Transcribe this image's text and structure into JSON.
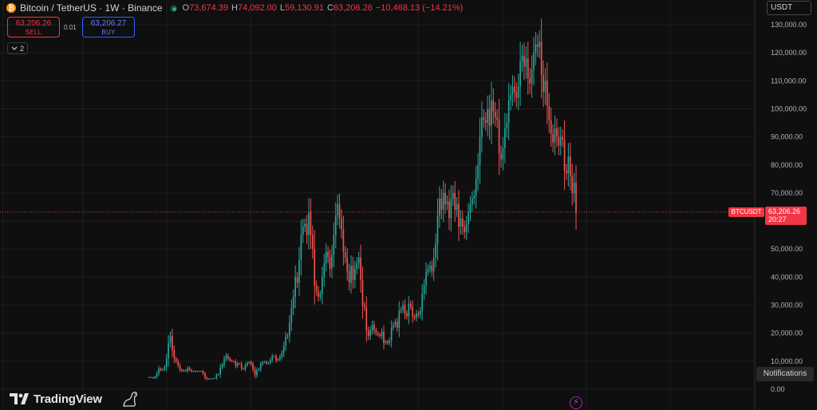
{
  "header": {
    "coin_glyph": "₿",
    "title": "Bitcoin / TetherUS · 1W · Binance",
    "ohlc": {
      "open_key": "O",
      "open": "73,674.39",
      "high_key": "H",
      "high": "74,092.00",
      "low_key": "L",
      "low": "59,130.91",
      "close_key": "C",
      "close": "63,206.26",
      "change": "−10,468.13 (−14.21%)"
    }
  },
  "trade": {
    "sell_price": "63,206.26",
    "sell_label": "SELL",
    "spread": "0.01",
    "buy_price": "63,206.27",
    "buy_label": "BUY"
  },
  "indicators": {
    "count": "2",
    "icon": "chevron-down-icon"
  },
  "currency": {
    "selected": "USDT"
  },
  "price_scale": {
    "last_price": "63,206.26",
    "countdown": "20:27",
    "symbol_tag": "BTCUSDT"
  },
  "notifications_label": "Notifications",
  "branding": {
    "name": "TradingView"
  },
  "colors": {
    "up": "#26a69a",
    "down": "#ef5350",
    "background": "#0f0f0f",
    "grid": "#1e1e1e",
    "last_price": "#f23645",
    "sell": "#f23645",
    "buy": "#2962ff"
  },
  "chart_data": {
    "type": "candlestick",
    "symbol": "BTCUSDT",
    "interval": "1W",
    "exchange": "Binance",
    "ylim": [
      0,
      130000
    ],
    "y_ticks": [
      0,
      10000,
      20000,
      30000,
      40000,
      50000,
      60000,
      70000,
      80000,
      90000,
      100000,
      110000,
      120000,
      130000
    ],
    "y_tick_labels": [
      "0.00",
      "10,000.00",
      "20,000.00",
      "30,000.00",
      "40,000.00",
      "50,000.00",
      "60,000.00",
      "70,000.00",
      "80,000.00",
      "90,000.00",
      "100,000.00",
      "110,000.00",
      "120,000.00",
      "130,000.00"
    ],
    "grid": true,
    "last_price": 63206.26,
    "close_series_approx": [
      4300,
      4200,
      4000,
      4500,
      5700,
      7400,
      6800,
      7100,
      8000,
      11000,
      16500,
      19000,
      14000,
      11000,
      10000,
      8500,
      7000,
      6500,
      6800,
      6500,
      7600,
      6900,
      6400,
      6500,
      6300,
      6400,
      6500,
      6400,
      5600,
      4200,
      3600,
      3800,
      3700,
      3900,
      4000,
      5100,
      5400,
      7800,
      8800,
      10800,
      12000,
      11000,
      10300,
      10000,
      9800,
      8300,
      9200,
      9100,
      7500,
      7200,
      8600,
      9400,
      9700,
      8900,
      7100,
      5000,
      6800,
      7200,
      8900,
      9600,
      9800,
      9200,
      9500,
      10500,
      11800,
      11700,
      10300,
      10700,
      11600,
      13000,
      15500,
      18600,
      19200,
      23800,
      29000,
      33000,
      40000,
      38000,
      46000,
      55000,
      58000,
      59000,
      55000,
      63000,
      55000,
      50000,
      37000,
      35000,
      33000,
      34000,
      40000,
      45000,
      49000,
      47000,
      43000,
      48000,
      55000,
      62000,
      66000,
      61000,
      57000,
      49000,
      47000,
      42000,
      38000,
      44000,
      39000,
      43000,
      45000,
      47000,
      39000,
      30000,
      29000,
      21000,
      19000,
      21000,
      23000,
      21000,
      20000,
      19500,
      19000,
      20500,
      16500,
      17000,
      16500,
      17500,
      22000,
      23000,
      24000,
      22000,
      28000,
      28500,
      30000,
      27000,
      26000,
      30500,
      29500,
      26000,
      25500,
      27000,
      26500,
      28000,
      34000,
      37000,
      42000,
      43000,
      44000,
      42000,
      47000,
      52000,
      62000,
      68000,
      64000,
      70000,
      66000,
      67000,
      61000,
      68000,
      70000,
      64000,
      66000,
      58000,
      61000,
      58000,
      56000,
      59000,
      63000,
      66000,
      68000,
      69000,
      75000,
      80000,
      90000,
      97000,
      96000,
      95000,
      100000,
      94000,
      103000,
      99000,
      97000,
      96000,
      84000,
      82000,
      86000,
      93000,
      95000,
      103000,
      105000,
      108000,
      106000,
      104000,
      108000,
      117000,
      119000,
      115000,
      118000,
      111000,
      109000,
      114000,
      120000,
      123000,
      122000,
      124000,
      112000,
      106000,
      110000,
      101000,
      96000,
      91000,
      88000,
      93000,
      90000,
      87000,
      90000,
      89000,
      78000,
      77000,
      83000,
      76000,
      70000,
      73674,
      63206
    ]
  }
}
